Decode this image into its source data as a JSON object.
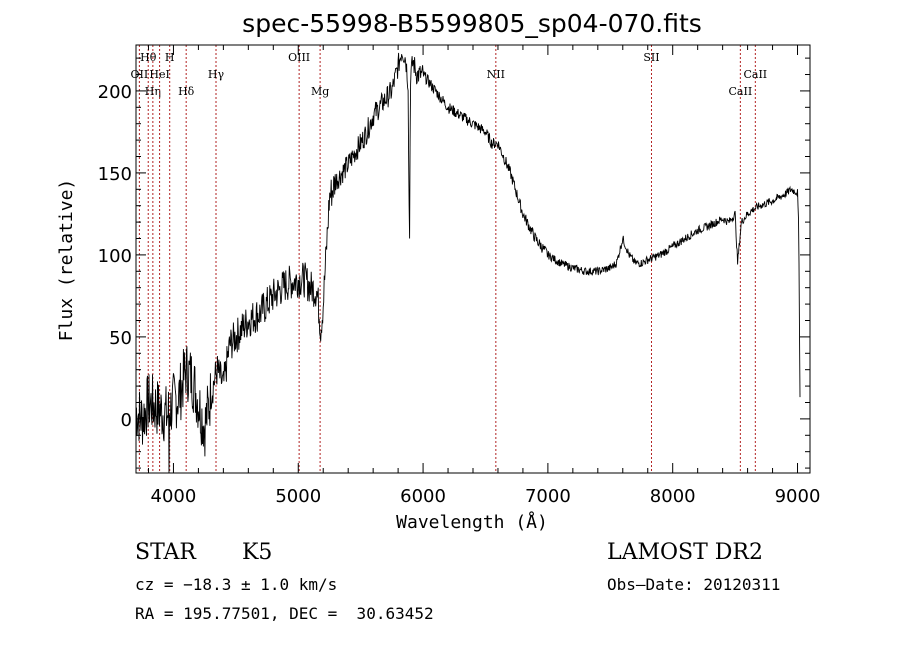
{
  "chart_data": {
    "type": "line",
    "title": "spec-55998-B5599805_sp04-070.fits",
    "xlabel": "Wavelength (Å)",
    "ylabel": "Flux (relative)",
    "xlim": [
      3700,
      9100
    ],
    "ylim": [
      -33,
      228
    ],
    "x_ticks": [
      4000,
      5000,
      6000,
      7000,
      8000,
      9000
    ],
    "y_ticks": [
      0,
      50,
      100,
      150,
      200
    ],
    "grid": false,
    "series": [
      {
        "x": [
          3700,
          3750,
          3800,
          3850,
          3900,
          3950,
          4000,
          4050,
          4100,
          4150,
          4200,
          4250,
          4300,
          4350,
          4400,
          4450,
          4500,
          4600,
          4700,
          4800,
          4900,
          5000,
          5050,
          5100,
          5150,
          5180,
          5200,
          5250,
          5300,
          5350,
          5400,
          5450,
          5500,
          5550,
          5600,
          5650,
          5700,
          5750,
          5800,
          5830,
          5860,
          5880,
          5890,
          5900,
          5920,
          5950,
          6000,
          6050,
          6100,
          6200,
          6300,
          6400,
          6500,
          6550,
          6600,
          6700,
          6800,
          6900,
          7000,
          7100,
          7200,
          7300,
          7400,
          7500,
          7550,
          7600,
          7650,
          7700,
          7750,
          7800,
          7900,
          8000,
          8100,
          8200,
          8300,
          8400,
          8450,
          8500,
          8520,
          8550,
          8600,
          8650,
          8700,
          8800,
          8900,
          8950,
          9000,
          9010,
          9020
        ],
        "y": [
          5,
          0,
          10,
          8,
          5,
          2,
          10,
          15,
          30,
          25,
          10,
          -5,
          15,
          30,
          20,
          45,
          50,
          60,
          65,
          75,
          82,
          85,
          85,
          80,
          78,
          55,
          70,
          135,
          145,
          150,
          155,
          162,
          168,
          175,
          185,
          190,
          195,
          200,
          215,
          225,
          220,
          205,
          110,
          210,
          218,
          210,
          210,
          205,
          200,
          190,
          185,
          180,
          175,
          168,
          168,
          150,
          125,
          110,
          100,
          95,
          92,
          90,
          90,
          92,
          95,
          110,
          100,
          95,
          95,
          97,
          100,
          105,
          110,
          115,
          118,
          122,
          120,
          125,
          95,
          120,
          125,
          128,
          130,
          133,
          137,
          140,
          138,
          115,
          15
        ]
      }
    ],
    "lines": [
      {
        "label": "Hθ",
        "x": 3798,
        "row": 1
      },
      {
        "label": "OII",
        "x": 3727,
        "row": 2
      },
      {
        "label": "Hη",
        "x": 3835,
        "row": 3
      },
      {
        "label": "HeI",
        "x": 3889,
        "row": 2
      },
      {
        "label": "H",
        "x": 3970,
        "row": 1
      },
      {
        "label": "Hδ",
        "x": 4102,
        "row": 3
      },
      {
        "label": "Hγ",
        "x": 4341,
        "row": 2
      },
      {
        "label": "OIII",
        "x": 5007,
        "row": 1
      },
      {
        "label": "Mg",
        "x": 5175,
        "row": 3
      },
      {
        "label": "NII",
        "x": 6583,
        "row": 2
      },
      {
        "label": "SII",
        "x": 7830,
        "row": 1
      },
      {
        "label": "CaII",
        "x": 8542,
        "row": 3
      },
      {
        "label": "CaII",
        "x": 8662,
        "row": 2
      }
    ]
  },
  "info": {
    "object_class": "STAR",
    "subclass": "K5",
    "survey": "LAMOST DR2",
    "redshift": "cz = −18.3 ± 1.0 km/s",
    "obs_date": "Obs–Date: 20120311",
    "coords": "RA = 195.77501, DEC =  30.63452"
  },
  "colors": {
    "line_marker": "#b22222",
    "spectrum": "#000000"
  }
}
